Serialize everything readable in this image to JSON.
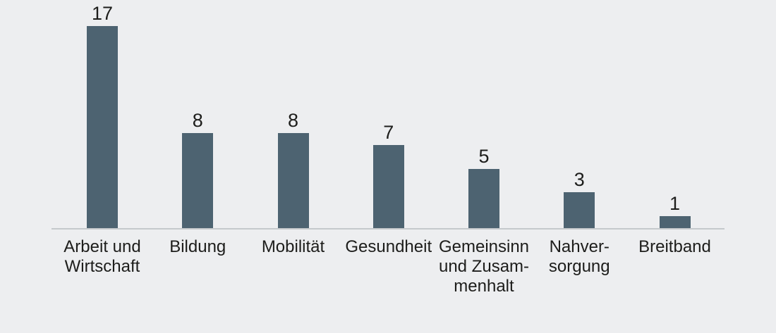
{
  "chart_data": {
    "type": "bar",
    "title": "",
    "xlabel": "",
    "ylabel": "",
    "categories": [
      "Arbeit und Wirtschaft",
      "Bildung",
      "Mobilität",
      "Gesundheit",
      "Gemeinsinn und Zusammenhalt",
      "Nahversorgung",
      "Breitband"
    ],
    "category_display_lines": [
      [
        "Arbeit und",
        "Wirtschaft"
      ],
      [
        "Bildung"
      ],
      [
        "Mobilität"
      ],
      [
        "Gesundheit"
      ],
      [
        "Gemeinsinn",
        "und Zusam-",
        "menhalt"
      ],
      [
        "Nahver-",
        "sorgung"
      ],
      [
        "Breitband"
      ]
    ],
    "values": [
      17,
      8,
      8,
      7,
      5,
      3,
      1
    ],
    "value_labels": [
      "17",
      "8",
      "8",
      "7",
      "5",
      "3",
      "1"
    ],
    "ylim": [
      0,
      17
    ],
    "grid": false,
    "legend": false,
    "colors": {
      "background": "#edeef0",
      "bar": "#4d6371",
      "axis_line": "#c5c9cc",
      "text": "#1d1d1b"
    }
  }
}
